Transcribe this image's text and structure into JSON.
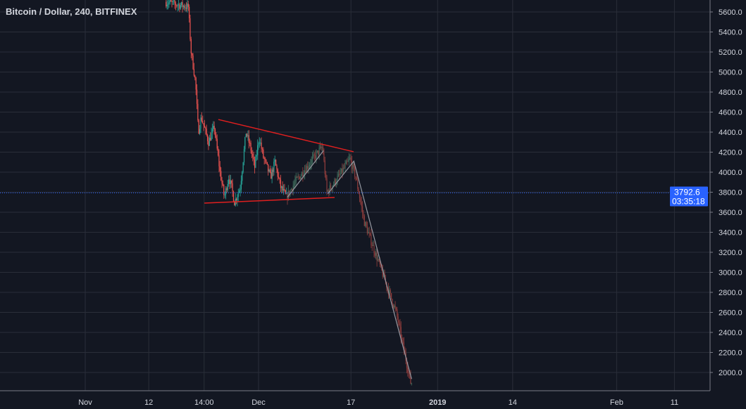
{
  "header": {
    "title": "Bitcoin / Dollar, 240, BITFINEX"
  },
  "colors": {
    "background": "#131722",
    "grid": "#2a2e39",
    "up": "#26a69a",
    "down": "#ef5350",
    "price_line": "#2962ff",
    "trendline": "#e01f1f",
    "projection": "#9598a1",
    "axis_text": "#d1d4dc"
  },
  "chart_data": {
    "type": "candlestick",
    "title": "Bitcoin / Dollar, 240, BITFINEX",
    "interval": "240",
    "ylim": [
      1800,
      5750
    ],
    "y_ticks": [
      "5600.0",
      "5400.0",
      "5200.0",
      "5000.0",
      "4800.0",
      "4600.0",
      "4400.0",
      "4200.0",
      "4000.0",
      "3800.0",
      "3600.0",
      "3400.0",
      "3200.0",
      "3000.0",
      "2800.0",
      "2600.0",
      "2400.0",
      "2200.0",
      "2000.0"
    ],
    "x_ticks": [
      {
        "label": "Nov",
        "date": "2018-11-01T00:00"
      },
      {
        "label": "12",
        "date": "2018-11-12T00:00"
      },
      {
        "label": "14:00",
        "date": "2018-11-21T14:00"
      },
      {
        "label": "Dec",
        "date": "2018-12-01T00:00"
      },
      {
        "label": "17",
        "date": "2018-12-17T00:00"
      },
      {
        "label": "2019",
        "date": "2019-01-01T00:00"
      },
      {
        "label": "14",
        "date": "2019-01-14T00:00"
      },
      {
        "label": "Feb",
        "date": "2019-02-01T00:00"
      },
      {
        "label": "11",
        "date": "2019-02-11T00:00"
      }
    ],
    "price_path": [
      [
        "2018-11-15T00:00",
        5700
      ],
      [
        "2018-11-19T00:00",
        5650
      ],
      [
        "2018-11-19T12:00",
        5200
      ],
      [
        "2018-11-20T06:00",
        4900
      ],
      [
        "2018-11-20T18:00",
        4400
      ],
      [
        "2018-11-21T06:00",
        4550
      ],
      [
        "2018-11-22T12:00",
        4300
      ],
      [
        "2018-11-23T12:00",
        4450
      ],
      [
        "2018-11-24T12:00",
        4000
      ],
      [
        "2018-11-25T06:00",
        3750
      ],
      [
        "2018-11-26T00:00",
        3950
      ],
      [
        "2018-11-26T12:00",
        3850
      ],
      [
        "2018-11-27T00:00",
        3700
      ],
      [
        "2018-11-28T00:00",
        3850
      ],
      [
        "2018-11-29T00:00",
        4400
      ],
      [
        "2018-11-29T18:00",
        4250
      ],
      [
        "2018-11-30T12:00",
        4050
      ],
      [
        "2018-12-01T06:00",
        4350
      ],
      [
        "2018-12-02T00:00",
        4150
      ],
      [
        "2018-12-03T06:00",
        3950
      ],
      [
        "2018-12-04T00:00",
        4100
      ],
      [
        "2018-12-05T00:00",
        3850
      ],
      [
        "2018-12-06T00:00",
        3750
      ],
      [
        "2018-12-07T12:00",
        3900
      ],
      [
        "2018-12-09T12:00",
        4050
      ],
      [
        "2018-12-11T18:00",
        4220
      ],
      [
        "2018-12-12T06:00",
        4250
      ],
      [
        "2018-12-13T00:00",
        3800
      ],
      [
        "2018-12-15T00:00",
        3950
      ],
      [
        "2018-12-17T00:00",
        4130
      ],
      [
        "2018-12-18T00:00",
        3950
      ],
      [
        "2018-12-19T12:00",
        3500
      ],
      [
        "2018-12-25T00:00",
        2600
      ],
      [
        "2018-12-27T12:00",
        1900
      ]
    ],
    "last_price": {
      "value": "3792.6",
      "countdown": "03:35:18"
    },
    "drawings": [
      {
        "type": "trendline",
        "color": "trendline",
        "points": [
          [
            "2018-11-24T01:00",
            4526
          ],
          [
            "2018-12-17T11:00",
            4204
          ]
        ]
      },
      {
        "type": "trendline",
        "color": "trendline",
        "points": [
          [
            "2018-11-21T15:00",
            3691
          ],
          [
            "2018-12-14T04:00",
            3747
          ]
        ]
      },
      {
        "type": "path",
        "color": "projection",
        "points": [
          [
            "2018-12-06T00:00",
            3750
          ],
          [
            "2018-12-12T06:00",
            4215
          ]
        ]
      },
      {
        "type": "path",
        "color": "projection",
        "points": [
          [
            "2018-12-13T00:00",
            3785
          ],
          [
            "2018-12-17T12:00",
            4110
          ],
          [
            "2018-12-27T12:00",
            1935
          ]
        ]
      }
    ]
  }
}
